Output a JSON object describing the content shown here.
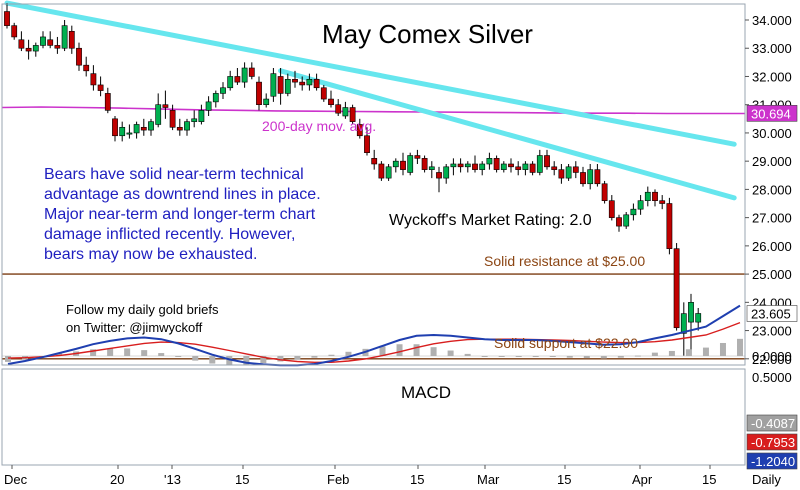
{
  "chart_data": [
    {
      "type": "candlestick",
      "title": "May Comex Silver",
      "ylim": [
        21.8,
        34.8
      ],
      "y_ticks": [
        "22.000",
        "23.000",
        "24.000",
        "25.000",
        "26.000",
        "27.000",
        "28.000",
        "29.000",
        "30.000",
        "31.000",
        "32.000",
        "33.000",
        "34.000"
      ],
      "x_ticks": [
        "Dec",
        "20",
        "'13",
        "15",
        "Feb",
        "15",
        "Mar",
        "15",
        "Apr",
        "15"
      ],
      "x_frequency_label": "Daily",
      "ohlc": [
        [
          34.3,
          34.6,
          33.7,
          33.8
        ],
        [
          33.8,
          33.9,
          33.3,
          33.4
        ],
        [
          33.3,
          33.6,
          32.9,
          33.0
        ],
        [
          33.0,
          33.3,
          32.6,
          32.9
        ],
        [
          32.9,
          33.2,
          32.7,
          33.1
        ],
        [
          33.1,
          33.6,
          33.0,
          33.4
        ],
        [
          33.3,
          33.6,
          33.0,
          33.1
        ],
        [
          33.1,
          33.4,
          32.8,
          33.0
        ],
        [
          33.0,
          34.0,
          32.9,
          33.8
        ],
        [
          33.6,
          33.8,
          32.8,
          33.0
        ],
        [
          33.0,
          33.2,
          32.2,
          32.4
        ],
        [
          32.4,
          32.7,
          32.0,
          32.2
        ],
        [
          32.1,
          32.4,
          31.5,
          31.7
        ],
        [
          31.7,
          32.0,
          31.3,
          31.5
        ],
        [
          31.4,
          31.6,
          30.7,
          30.8
        ],
        [
          30.5,
          30.6,
          29.7,
          29.9
        ],
        [
          29.9,
          30.4,
          29.7,
          30.2
        ],
        [
          30.0,
          30.3,
          29.8,
          30.0
        ],
        [
          30.0,
          30.4,
          29.8,
          30.3
        ],
        [
          30.2,
          30.5,
          29.9,
          30.1
        ],
        [
          30.1,
          30.5,
          29.9,
          30.4
        ],
        [
          30.3,
          31.4,
          30.2,
          31.0
        ],
        [
          31.0,
          31.5,
          30.5,
          30.9
        ],
        [
          30.8,
          31.0,
          30.1,
          30.2
        ],
        [
          30.2,
          30.5,
          29.9,
          30.1
        ],
        [
          30.1,
          30.5,
          29.9,
          30.4
        ],
        [
          30.4,
          30.8,
          30.2,
          30.5
        ],
        [
          30.4,
          31.0,
          30.3,
          30.8
        ],
        [
          30.8,
          31.3,
          30.6,
          31.1
        ],
        [
          31.1,
          31.5,
          30.9,
          31.4
        ],
        [
          31.4,
          31.8,
          31.2,
          31.6
        ],
        [
          31.6,
          32.2,
          31.5,
          32.0
        ],
        [
          32.0,
          32.3,
          31.7,
          31.8
        ],
        [
          31.8,
          32.5,
          31.6,
          32.3
        ],
        [
          32.3,
          32.5,
          31.9,
          32.0
        ],
        [
          31.8,
          32.0,
          30.8,
          31.0
        ],
        [
          31.0,
          31.4,
          30.9,
          31.2
        ],
        [
          31.3,
          32.3,
          31.1,
          32.1
        ],
        [
          32.0,
          32.3,
          31.0,
          31.4
        ],
        [
          31.4,
          32.1,
          31.3,
          31.9
        ],
        [
          31.9,
          32.2,
          31.6,
          31.8
        ],
        [
          31.8,
          32.0,
          31.5,
          31.7
        ],
        [
          31.7,
          32.1,
          31.5,
          31.9
        ],
        [
          31.9,
          32.1,
          31.5,
          31.6
        ],
        [
          31.6,
          31.7,
          31.1,
          31.2
        ],
        [
          31.2,
          31.5,
          30.9,
          31.0
        ],
        [
          31.0,
          31.2,
          30.6,
          30.7
        ],
        [
          30.6,
          31.1,
          30.5,
          30.9
        ],
        [
          30.9,
          31.0,
          30.3,
          30.4
        ],
        [
          30.3,
          30.5,
          29.8,
          29.9
        ],
        [
          29.9,
          30.2,
          29.2,
          29.3
        ],
        [
          29.1,
          29.4,
          28.7,
          28.9
        ],
        [
          28.9,
          29.0,
          28.3,
          28.4
        ],
        [
          28.4,
          28.9,
          28.3,
          28.8
        ],
        [
          28.8,
          29.1,
          28.6,
          29.0
        ],
        [
          29.0,
          29.3,
          28.5,
          28.7
        ],
        [
          28.6,
          29.3,
          28.5,
          29.2
        ],
        [
          29.2,
          29.4,
          28.9,
          29.1
        ],
        [
          29.1,
          29.2,
          28.6,
          28.7
        ],
        [
          28.7,
          29.0,
          28.4,
          28.8
        ],
        [
          28.6,
          28.8,
          27.9,
          28.4
        ],
        [
          28.4,
          28.9,
          28.2,
          28.8
        ],
        [
          28.8,
          29.1,
          28.5,
          28.9
        ],
        [
          28.9,
          29.1,
          28.6,
          28.8
        ],
        [
          28.8,
          29.0,
          28.6,
          28.9
        ],
        [
          28.9,
          29.2,
          28.6,
          28.7
        ],
        [
          28.7,
          29.0,
          28.5,
          28.9
        ],
        [
          28.9,
          29.3,
          28.7,
          29.1
        ],
        [
          29.1,
          29.2,
          28.6,
          28.7
        ],
        [
          28.7,
          29.0,
          28.6,
          28.9
        ],
        [
          28.9,
          29.1,
          28.6,
          28.8
        ],
        [
          28.8,
          29.0,
          28.5,
          28.7
        ],
        [
          28.7,
          29.0,
          28.5,
          28.9
        ],
        [
          28.9,
          29.0,
          28.5,
          28.6
        ],
        [
          28.6,
          29.4,
          28.5,
          29.2
        ],
        [
          29.2,
          29.4,
          28.7,
          28.8
        ],
        [
          28.8,
          29.0,
          28.5,
          28.7
        ],
        [
          28.7,
          28.9,
          28.2,
          28.4
        ],
        [
          28.4,
          28.9,
          28.3,
          28.8
        ],
        [
          28.8,
          29.0,
          28.4,
          28.6
        ],
        [
          28.6,
          28.8,
          28.1,
          28.2
        ],
        [
          28.2,
          28.9,
          28.0,
          28.7
        ],
        [
          28.7,
          28.9,
          28.1,
          28.2
        ],
        [
          28.2,
          28.3,
          27.5,
          27.6
        ],
        [
          27.6,
          27.8,
          26.9,
          27.0
        ],
        [
          27.0,
          27.1,
          26.5,
          26.7
        ],
        [
          26.7,
          27.2,
          26.6,
          27.1
        ],
        [
          27.1,
          27.5,
          26.9,
          27.3
        ],
        [
          27.3,
          27.8,
          27.1,
          27.6
        ],
        [
          27.6,
          28.1,
          27.4,
          27.9
        ],
        [
          27.9,
          28.0,
          27.4,
          27.6
        ],
        [
          27.6,
          27.8,
          27.3,
          27.5
        ],
        [
          27.5,
          27.7,
          25.7,
          25.9
        ],
        [
          25.9,
          26.1,
          23.0,
          23.1
        ],
        [
          22.9,
          24.0,
          22.1,
          23.6
        ],
        [
          23.3,
          24.3,
          22.2,
          24.0
        ],
        [
          23.3,
          23.8,
          23.0,
          23.605
        ]
      ],
      "series": [
        {
          "name": "200-day mov. avg.",
          "values": [
            30.9,
            30.92,
            30.9,
            30.88,
            30.85,
            30.82,
            30.8,
            30.78,
            30.77,
            30.76,
            30.75,
            30.74,
            30.73,
            30.72,
            30.71,
            30.7,
            30.7,
            30.69,
            30.69,
            30.69
          ]
        }
      ],
      "last_values": {
        "price": "23.605",
        "moving_average": "30.694"
      },
      "annotations": [
        "200-day mov. avg.",
        "Bears have solid near-term technical advantage as downtrend lines in place. Major near-term and longer-term chart damage inflicted recently. However, bears may now be exhausted.",
        "Wyckoff's Market Rating: 2.0",
        "Solid resistance at $25.00",
        "Solid support at $22.00",
        "Follow my daily gold briefs",
        "on Twitter:   @jimwyckoff"
      ],
      "annotation_lines": [
        [
          "Bears have solid near-term technical",
          "advantage as downtrend lines in place.",
          "Major near-term and longer-term chart",
          "damage inflicted recently. However,",
          "bears may now be exhausted."
        ]
      ],
      "horizontal_levels": [
        {
          "label": "Solid resistance at $25.00",
          "value": 25.0
        },
        {
          "label": "Solid support at $22.00",
          "value": 22.0
        }
      ],
      "trend_lines": [
        {
          "from_bar": 0,
          "from_value": 34.6,
          "to_bar": 101,
          "to_value": 29.6
        },
        {
          "from_bar": 38,
          "from_value": 32.2,
          "to_bar": 101,
          "to_value": 27.7
        }
      ],
      "colors": {
        "up_candle": "#00b050",
        "down_candle": "#c00000",
        "trend_line": "#66e6ee",
        "ma_line": "#cc33cc",
        "level_line": "#7a3b10",
        "annotation_blue": "#2020c0",
        "annotation_brown": "#8b4513",
        "annotation_magenta": "#cc33cc"
      }
    },
    {
      "type": "line",
      "title": "MACD",
      "ylim": [
        -1.35,
        0.55
      ],
      "y_ticks": [
        "0.5000",
        "0.0000"
      ],
      "last_values": {
        "histogram": "-0.4087",
        "signal": "-0.7953",
        "macd": "-1.2040"
      },
      "series": [
        {
          "name": "MACD",
          "values": [
            0.19,
            0.12,
            0.03,
            -0.07,
            -0.17,
            -0.28,
            -0.36,
            -0.42,
            -0.44,
            -0.4,
            -0.3,
            -0.17,
            -0.03,
            0.08,
            0.16,
            0.2,
            0.22,
            0.22,
            0.19,
            0.12,
            0.02,
            -0.1,
            -0.24,
            -0.38,
            -0.48,
            -0.5,
            -0.48,
            -0.44,
            -0.4,
            -0.38,
            -0.38,
            -0.38,
            -0.36,
            -0.33,
            -0.3,
            -0.27,
            -0.28,
            -0.33,
            -0.42,
            -0.5,
            -0.6,
            -0.7,
            -0.95,
            -1.2
          ]
        },
        {
          "name": "Signal",
          "values": [
            0.05,
            0.04,
            0.02,
            -0.01,
            -0.06,
            -0.12,
            -0.18,
            -0.24,
            -0.3,
            -0.33,
            -0.32,
            -0.28,
            -0.21,
            -0.13,
            -0.05,
            0.03,
            0.09,
            0.13,
            0.15,
            0.15,
            0.12,
            0.07,
            -0.01,
            -0.1,
            -0.2,
            -0.29,
            -0.35,
            -0.39,
            -0.4,
            -0.4,
            -0.4,
            -0.39,
            -0.38,
            -0.37,
            -0.35,
            -0.33,
            -0.32,
            -0.32,
            -0.34,
            -0.38,
            -0.44,
            -0.5,
            -0.64,
            -0.7953
          ]
        }
      ],
      "histogram": [
        0.14,
        0.08,
        0.01,
        -0.06,
        -0.11,
        -0.16,
        -0.18,
        -0.18,
        -0.14,
        -0.07,
        0.02,
        0.11,
        0.18,
        0.21,
        0.21,
        0.17,
        0.13,
        0.09,
        0.04,
        -0.03,
        -0.1,
        -0.17,
        -0.23,
        -0.28,
        -0.28,
        -0.21,
        -0.13,
        -0.05,
        0.0,
        0.02,
        0.02,
        0.01,
        0.02,
        0.04,
        0.05,
        0.06,
        0.04,
        -0.01,
        -0.08,
        -0.12,
        -0.16,
        -0.2,
        -0.31,
        -0.4087
      ]
    }
  ]
}
